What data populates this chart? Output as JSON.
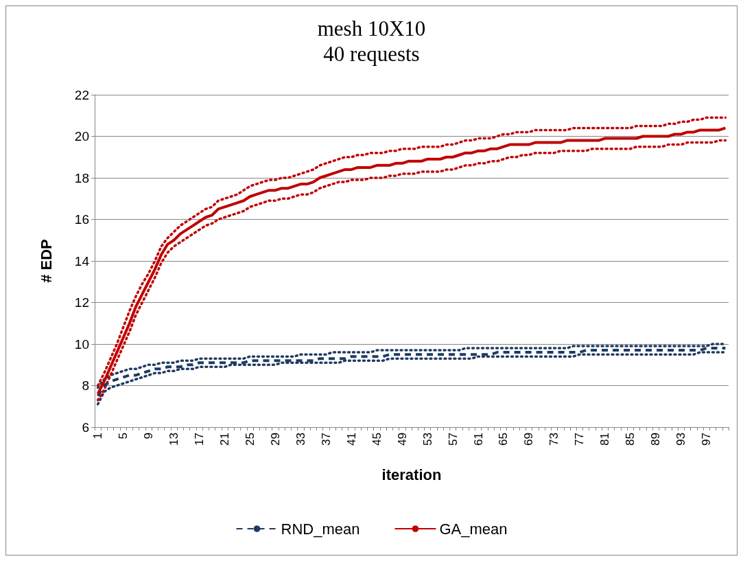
{
  "chart_data": {
    "type": "line",
    "title": "mesh 10X10",
    "subtitle": "40 requests",
    "xlabel": "iteration",
    "ylabel": "# EDP",
    "categories": [
      "1",
      null,
      null,
      null,
      "5",
      null,
      null,
      null,
      "9",
      null,
      null,
      null,
      "13",
      null,
      null,
      null,
      "17",
      null,
      null,
      null,
      "21",
      null,
      null,
      null,
      "25",
      null,
      null,
      null,
      "29",
      null,
      null,
      null,
      "33",
      null,
      null,
      null,
      "37",
      null,
      null,
      null,
      "41",
      null,
      null,
      null,
      "45",
      null,
      null,
      null,
      "49",
      null,
      null,
      null,
      "53",
      null,
      null,
      null,
      "57",
      null,
      null,
      null,
      "61",
      null,
      null,
      null,
      "65",
      null,
      null,
      null,
      "69",
      null,
      null,
      null,
      "73",
      null,
      null,
      null,
      "77",
      null,
      null,
      null,
      "81",
      null,
      null,
      null,
      "85",
      null,
      null,
      null,
      "89",
      null,
      null,
      null,
      "93",
      null,
      null,
      null,
      "97",
      null,
      null,
      null
    ],
    "ylim": [
      6,
      22
    ],
    "yticks": [
      6,
      8,
      10,
      12,
      14,
      16,
      18,
      20,
      22
    ],
    "grid": "y",
    "legend": "bottom",
    "series": [
      {
        "color": "#1f3b63",
        "line_style": "dotted",
        "values": [
          7.9,
          8.3,
          8.5,
          8.6,
          8.7,
          8.8,
          8.8,
          8.9,
          9.0,
          9.0,
          9.1,
          9.1,
          9.1,
          9.2,
          9.2,
          9.2,
          9.3,
          9.3,
          9.3,
          9.3,
          9.3,
          9.3,
          9.3,
          9.3,
          9.4,
          9.4,
          9.4,
          9.4,
          9.4,
          9.4,
          9.4,
          9.4,
          9.5,
          9.5,
          9.5,
          9.5,
          9.5,
          9.6,
          9.6,
          9.6,
          9.6,
          9.6,
          9.6,
          9.6,
          9.7,
          9.7,
          9.7,
          9.7,
          9.7,
          9.7,
          9.7,
          9.7,
          9.7,
          9.7,
          9.7,
          9.7,
          9.7,
          9.7,
          9.8,
          9.8,
          9.8,
          9.8,
          9.8,
          9.8,
          9.8,
          9.8,
          9.8,
          9.8,
          9.8,
          9.8,
          9.8,
          9.8,
          9.8,
          9.8,
          9.8,
          9.9,
          9.9,
          9.9,
          9.9,
          9.9,
          9.9,
          9.9,
          9.9,
          9.9,
          9.9,
          9.9,
          9.9,
          9.9,
          9.9,
          9.9,
          9.9,
          9.9,
          9.9,
          9.9,
          9.9,
          9.9,
          9.9,
          10.0,
          10.0,
          10.0
        ]
      },
      {
        "color": "#1f3b63",
        "line_style": "dotted",
        "values": [
          7.1,
          7.7,
          7.9,
          8.0,
          8.1,
          8.2,
          8.3,
          8.4,
          8.5,
          8.6,
          8.6,
          8.7,
          8.7,
          8.8,
          8.8,
          8.8,
          8.9,
          8.9,
          8.9,
          8.9,
          8.9,
          9.0,
          9.0,
          9.0,
          9.0,
          9.0,
          9.0,
          9.0,
          9.0,
          9.1,
          9.1,
          9.1,
          9.1,
          9.1,
          9.1,
          9.1,
          9.1,
          9.1,
          9.1,
          9.2,
          9.2,
          9.2,
          9.2,
          9.2,
          9.2,
          9.2,
          9.3,
          9.3,
          9.3,
          9.3,
          9.3,
          9.3,
          9.3,
          9.3,
          9.3,
          9.3,
          9.3,
          9.3,
          9.3,
          9.3,
          9.4,
          9.4,
          9.4,
          9.4,
          9.4,
          9.4,
          9.4,
          9.4,
          9.4,
          9.4,
          9.4,
          9.4,
          9.4,
          9.4,
          9.4,
          9.4,
          9.5,
          9.5,
          9.5,
          9.5,
          9.5,
          9.5,
          9.5,
          9.5,
          9.5,
          9.5,
          9.5,
          9.5,
          9.5,
          9.5,
          9.5,
          9.5,
          9.5,
          9.5,
          9.5,
          9.6,
          9.6,
          9.6,
          9.6,
          9.6
        ]
      },
      {
        "color": "#c00000",
        "line_style": "dotted",
        "values": [
          8.0,
          8.6,
          9.3,
          10.0,
          10.8,
          11.6,
          12.3,
          12.9,
          13.4,
          14.0,
          14.7,
          15.1,
          15.4,
          15.7,
          15.9,
          16.1,
          16.3,
          16.5,
          16.6,
          16.9,
          17.0,
          17.1,
          17.2,
          17.4,
          17.6,
          17.7,
          17.8,
          17.9,
          17.9,
          18.0,
          18.0,
          18.1,
          18.2,
          18.3,
          18.4,
          18.6,
          18.7,
          18.8,
          18.9,
          19.0,
          19.0,
          19.1,
          19.1,
          19.2,
          19.2,
          19.2,
          19.3,
          19.3,
          19.4,
          19.4,
          19.4,
          19.5,
          19.5,
          19.5,
          19.5,
          19.6,
          19.6,
          19.7,
          19.8,
          19.8,
          19.9,
          19.9,
          19.9,
          20.0,
          20.1,
          20.1,
          20.2,
          20.2,
          20.2,
          20.3,
          20.3,
          20.3,
          20.3,
          20.3,
          20.3,
          20.4,
          20.4,
          20.4,
          20.4,
          20.4,
          20.4,
          20.4,
          20.4,
          20.4,
          20.4,
          20.5,
          20.5,
          20.5,
          20.5,
          20.5,
          20.6,
          20.6,
          20.7,
          20.7,
          20.8,
          20.8,
          20.9,
          20.9,
          20.9,
          20.9
        ]
      },
      {
        "color": "#c00000",
        "line_style": "dotted",
        "values": [
          7.3,
          7.8,
          8.5,
          9.2,
          9.9,
          10.6,
          11.4,
          12.0,
          12.6,
          13.2,
          13.9,
          14.4,
          14.7,
          14.9,
          15.1,
          15.3,
          15.5,
          15.7,
          15.8,
          16.0,
          16.1,
          16.2,
          16.3,
          16.4,
          16.6,
          16.7,
          16.8,
          16.9,
          16.9,
          17.0,
          17.0,
          17.1,
          17.2,
          17.2,
          17.3,
          17.5,
          17.6,
          17.7,
          17.8,
          17.8,
          17.9,
          17.9,
          17.9,
          18.0,
          18.0,
          18.0,
          18.1,
          18.1,
          18.2,
          18.2,
          18.2,
          18.3,
          18.3,
          18.3,
          18.3,
          18.4,
          18.4,
          18.5,
          18.6,
          18.6,
          18.7,
          18.7,
          18.8,
          18.8,
          18.9,
          19.0,
          19.0,
          19.1,
          19.1,
          19.2,
          19.2,
          19.2,
          19.2,
          19.3,
          19.3,
          19.3,
          19.3,
          19.3,
          19.4,
          19.4,
          19.4,
          19.4,
          19.4,
          19.4,
          19.4,
          19.5,
          19.5,
          19.5,
          19.5,
          19.5,
          19.6,
          19.6,
          19.6,
          19.7,
          19.7,
          19.7,
          19.7,
          19.7,
          19.8,
          19.8
        ]
      },
      {
        "name": "RND_mean",
        "color": "#1f3b63",
        "line_style": "dashed",
        "values": [
          7.5,
          8.0,
          8.2,
          8.3,
          8.4,
          8.5,
          8.5,
          8.6,
          8.7,
          8.8,
          8.8,
          8.9,
          8.9,
          8.9,
          9.0,
          9.0,
          9.1,
          9.1,
          9.1,
          9.1,
          9.1,
          9.1,
          9.1,
          9.1,
          9.2,
          9.2,
          9.2,
          9.2,
          9.2,
          9.2,
          9.2,
          9.2,
          9.2,
          9.2,
          9.2,
          9.3,
          9.3,
          9.3,
          9.3,
          9.3,
          9.4,
          9.4,
          9.4,
          9.4,
          9.4,
          9.4,
          9.5,
          9.5,
          9.5,
          9.5,
          9.5,
          9.5,
          9.5,
          9.5,
          9.5,
          9.5,
          9.5,
          9.5,
          9.5,
          9.5,
          9.5,
          9.5,
          9.5,
          9.6,
          9.6,
          9.6,
          9.6,
          9.6,
          9.6,
          9.6,
          9.6,
          9.6,
          9.6,
          9.6,
          9.6,
          9.6,
          9.6,
          9.7,
          9.7,
          9.7,
          9.7,
          9.7,
          9.7,
          9.7,
          9.7,
          9.7,
          9.7,
          9.7,
          9.7,
          9.7,
          9.7,
          9.7,
          9.7,
          9.7,
          9.7,
          9.7,
          9.8,
          9.8,
          9.8,
          9.8
        ]
      },
      {
        "name": "GA_mean",
        "color": "#c00000",
        "line_style": "solid",
        "values": [
          7.6,
          8.2,
          8.9,
          9.6,
          10.3,
          11.0,
          11.8,
          12.4,
          13.0,
          13.6,
          14.3,
          14.8,
          15.0,
          15.3,
          15.5,
          15.7,
          15.9,
          16.1,
          16.2,
          16.5,
          16.6,
          16.7,
          16.8,
          16.9,
          17.1,
          17.2,
          17.3,
          17.4,
          17.4,
          17.5,
          17.5,
          17.6,
          17.7,
          17.7,
          17.8,
          18.0,
          18.1,
          18.2,
          18.3,
          18.4,
          18.4,
          18.5,
          18.5,
          18.5,
          18.6,
          18.6,
          18.6,
          18.7,
          18.7,
          18.8,
          18.8,
          18.8,
          18.9,
          18.9,
          18.9,
          19.0,
          19.0,
          19.1,
          19.2,
          19.2,
          19.3,
          19.3,
          19.4,
          19.4,
          19.5,
          19.6,
          19.6,
          19.6,
          19.6,
          19.7,
          19.7,
          19.7,
          19.7,
          19.7,
          19.8,
          19.8,
          19.8,
          19.8,
          19.8,
          19.8,
          19.9,
          19.9,
          19.9,
          19.9,
          19.9,
          19.9,
          20.0,
          20.0,
          20.0,
          20.0,
          20.0,
          20.1,
          20.1,
          20.2,
          20.2,
          20.3,
          20.3,
          20.3,
          20.3,
          20.4
        ]
      }
    ]
  }
}
